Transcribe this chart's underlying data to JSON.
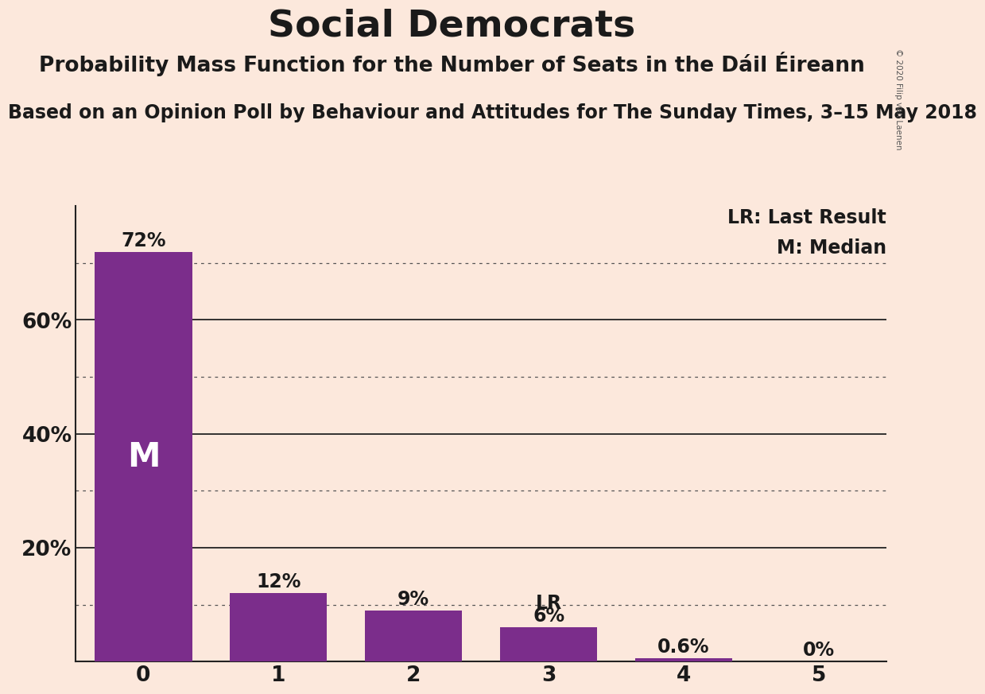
{
  "title": "Social Democrats",
  "subtitle": "Probability Mass Function for the Number of Seats in the Dáil Éireann",
  "source_line": "Based on an Opinion Poll by Behaviour and Attitudes for The Sunday Times, 3–15 May 2018",
  "copyright": "© 2020 Filip van Laenen",
  "categories": [
    0,
    1,
    2,
    3,
    4,
    5
  ],
  "values": [
    0.72,
    0.12,
    0.09,
    0.06,
    0.006,
    0.0
  ],
  "bar_color": "#7b2d8b",
  "background_color": "#fce8dc",
  "bar_labels": [
    "72%",
    "12%",
    "9%",
    "6%",
    "0.6%",
    "0%"
  ],
  "median_bar": 0,
  "lr_bar": 3,
  "legend_lr": "LR: Last Result",
  "legend_m": "M: Median",
  "solid_gridlines": [
    0.2,
    0.4,
    0.6
  ],
  "dotted_gridlines": [
    0.1,
    0.3,
    0.5,
    0.7
  ],
  "yticks": [
    0.2,
    0.4,
    0.6
  ],
  "ytick_labels": [
    "20%",
    "40%",
    "60%"
  ],
  "ylim": [
    0,
    0.8
  ],
  "title_fontsize": 34,
  "subtitle_fontsize": 19,
  "source_fontsize": 17,
  "label_fontsize": 17,
  "tick_fontsize": 19,
  "legend_fontsize": 17,
  "text_color": "#1a1a1a"
}
